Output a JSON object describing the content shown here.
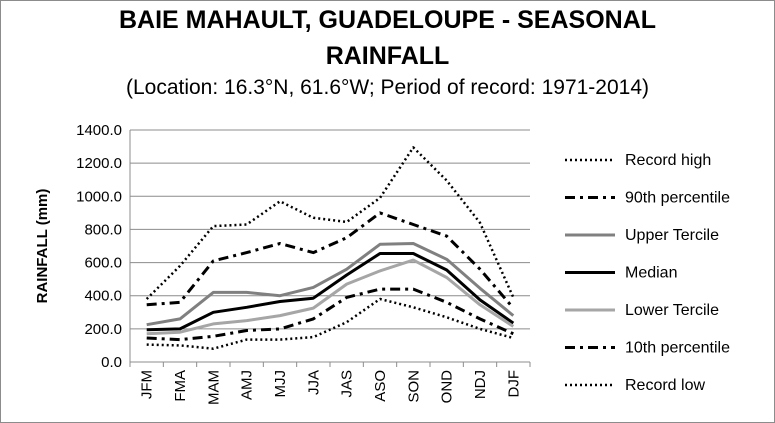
{
  "chart_data": {
    "type": "line",
    "title_line1": "BAIE MAHAULT, GUADELOUPE - SEASONAL",
    "title_line2": "RAINFALL",
    "subtitle": "(Location: 16.3°N, 61.6°W; Period of record: 1971-2014)",
    "xlabel": "",
    "ylabel": "RAINFALL (mm)",
    "ylim": [
      0,
      1400
    ],
    "yticks": [
      "0.0",
      "200.0",
      "400.0",
      "600.0",
      "800.0",
      "1000.0",
      "1200.0",
      "1400.0"
    ],
    "categories": [
      "JFM",
      "FMA",
      "MAM",
      "AMJ",
      "MJJ",
      "JJA",
      "JAS",
      "ASO",
      "SON",
      "OND",
      "NDJ",
      "DJF"
    ],
    "grid": true,
    "legend_position": "right",
    "series": [
      {
        "name": "Record high",
        "color": "#000000",
        "style": "dotted",
        "values": [
          380,
          580,
          820,
          830,
          970,
          870,
          845,
          990,
          1295,
          1095,
          840,
          390
        ]
      },
      {
        "name": "90th percentile",
        "color": "#000000",
        "style": "dashdot",
        "values": [
          345,
          360,
          610,
          660,
          715,
          660,
          750,
          900,
          830,
          760,
          560,
          325
        ]
      },
      {
        "name": "Upper Tercile",
        "color": "#808080",
        "style": "solid",
        "values": [
          225,
          260,
          420,
          420,
          400,
          450,
          560,
          710,
          715,
          620,
          445,
          280
        ]
      },
      {
        "name": "Median",
        "color": "#000000",
        "style": "solid",
        "values": [
          195,
          200,
          300,
          330,
          365,
          385,
          525,
          655,
          655,
          555,
          375,
          235
        ]
      },
      {
        "name": "Lower Tercile",
        "color": "#a6a6a6",
        "style": "solid",
        "values": [
          170,
          180,
          230,
          250,
          280,
          325,
          470,
          550,
          615,
          510,
          345,
          215
        ]
      },
      {
        "name": "10th percentile",
        "color": "#000000",
        "style": "dashdot",
        "values": [
          145,
          135,
          155,
          190,
          200,
          260,
          390,
          440,
          440,
          360,
          260,
          170
        ]
      },
      {
        "name": "Record low",
        "color": "#000000",
        "style": "dotted",
        "values": [
          105,
          100,
          80,
          135,
          135,
          150,
          240,
          380,
          330,
          270,
          200,
          145
        ]
      }
    ]
  }
}
